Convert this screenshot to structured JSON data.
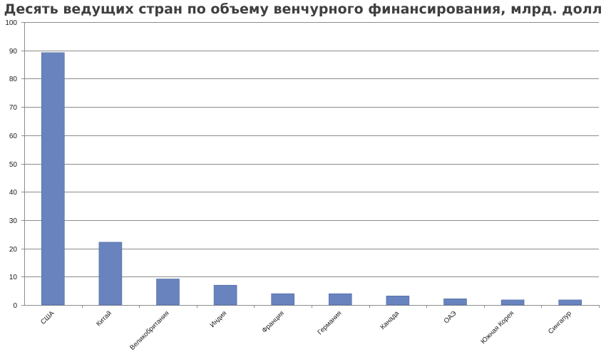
{
  "chart_data": {
    "type": "bar",
    "title": "Десять ведущих стран по объему венчурного финансирования, млрд. долл",
    "xlabel": "",
    "ylabel": "",
    "categories": [
      "США",
      "Китай",
      "Великобритания",
      "Индия",
      "Франция",
      "Германия",
      "Канада",
      "ОАЭ",
      "Южная Корея",
      "Сингапур"
    ],
    "values": [
      89.2,
      22.2,
      9.2,
      7.0,
      4.0,
      4.0,
      3.2,
      2.2,
      1.8,
      1.8
    ],
    "ylim": [
      0,
      100
    ],
    "yticks": [
      0,
      10,
      20,
      30,
      40,
      50,
      60,
      70,
      80,
      90,
      100
    ],
    "grid": true,
    "legend": "none",
    "colors": {
      "bar": "#6883bd",
      "bar_edge": "#4f6aa3",
      "grid": "#8c8c8c",
      "axis": "#8c8c8c",
      "text": "#1a1a1a"
    }
  }
}
